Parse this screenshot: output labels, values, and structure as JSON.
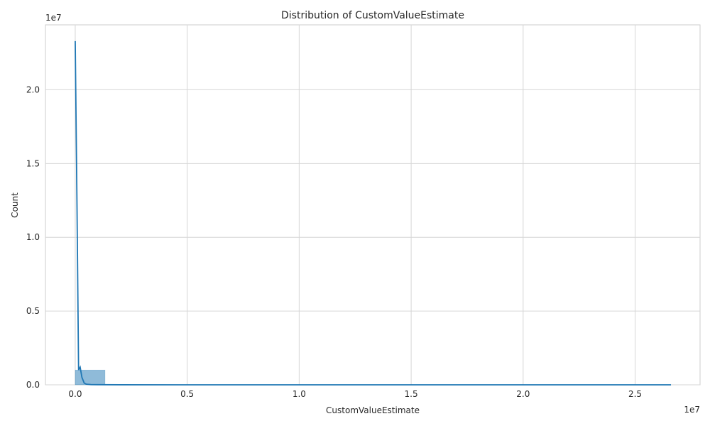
{
  "chart_data": {
    "type": "bar",
    "title": "Distribution of CustomValueEstimate",
    "xlabel": "CustomValueEstimate",
    "ylabel": "Count",
    "x_offset_label": "1e7",
    "y_offset_label": "1e7",
    "xlim": [
      -1330000,
      27900000
    ],
    "ylim": [
      0,
      24400000
    ],
    "x_ticks": [
      0,
      5000000,
      10000000,
      15000000,
      20000000,
      25000000
    ],
    "x_tick_labels": [
      "0.0",
      "0.5",
      "1.0",
      "1.5",
      "2.0",
      "2.5"
    ],
    "y_ticks": [
      0,
      5000000,
      10000000,
      15000000,
      20000000
    ],
    "y_tick_labels": [
      "0.0",
      "0.5",
      "1.0",
      "1.5",
      "2.0"
    ],
    "grid": true,
    "bin_edges": [
      0,
      1330000,
      2660000,
      3990000,
      5320000,
      6650000,
      7980000,
      9310000,
      10640000,
      11970000,
      13300000,
      14630000,
      15960000,
      17290000,
      18620000,
      19950000,
      21280000,
      22610000,
      23940000,
      25270000,
      26600000
    ],
    "counts": [
      1000000,
      8000,
      2000,
      1000,
      500,
      300,
      200,
      100,
      100,
      50,
      50,
      30,
      20,
      20,
      10,
      10,
      10,
      5,
      5,
      5
    ],
    "bar_color": "#1f77b4",
    "kde": {
      "color": "#1f77b4",
      "x": [
        0,
        80000,
        150000,
        220000,
        300000,
        400000,
        500000,
        700000,
        1000000,
        2000000,
        5000000,
        10000000,
        15000000,
        20000000,
        26600000
      ],
      "y": [
        23300000,
        12000000,
        1000000,
        1200000,
        500000,
        120000,
        40000,
        15000,
        8000,
        3000,
        1500,
        1000,
        800,
        500,
        300
      ]
    }
  }
}
